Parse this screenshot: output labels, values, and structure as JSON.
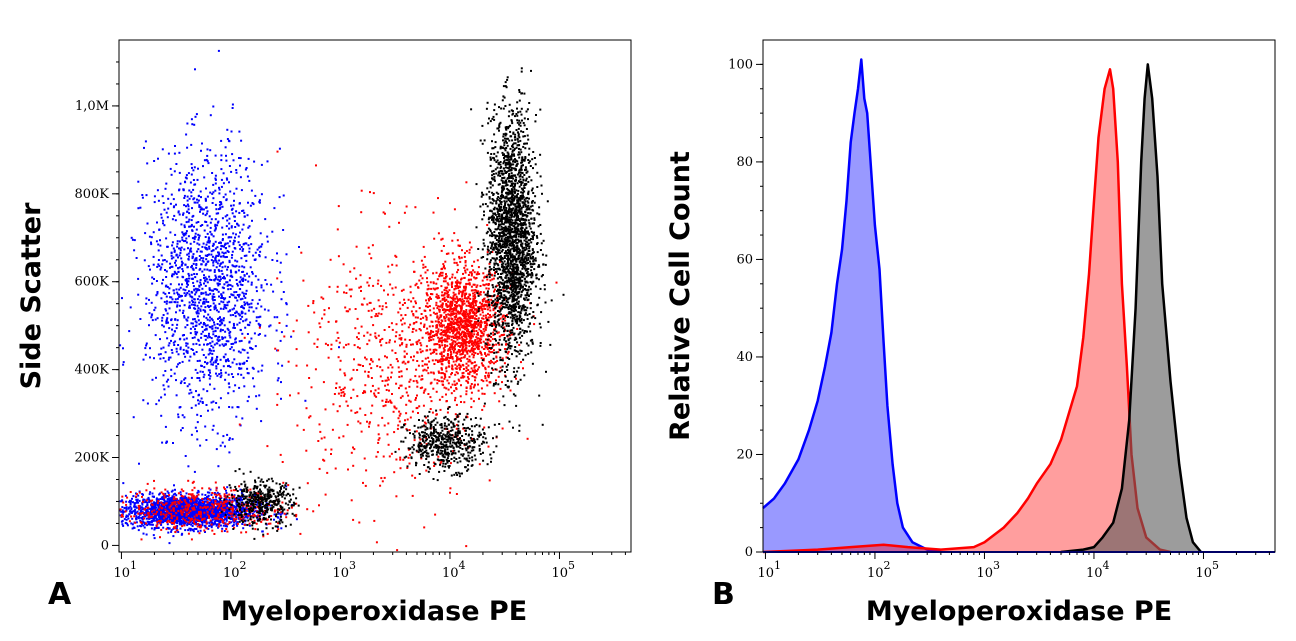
{
  "chart_data": [
    {
      "type": "scatter",
      "panel_label": "A",
      "xlabel": "Myeloperoxidase PE",
      "ylabel": "Side Scatter",
      "xscale": "log",
      "xlim": [
        9.5,
        450000
      ],
      "ylim": [
        -15000,
        1150000
      ],
      "x_ticks": [
        {
          "base": "10",
          "exp": "1",
          "value": 10
        },
        {
          "base": "10",
          "exp": "2",
          "value": 100
        },
        {
          "base": "10",
          "exp": "3",
          "value": 1000
        },
        {
          "base": "10",
          "exp": "4",
          "value": 10000
        },
        {
          "base": "10",
          "exp": "5",
          "value": 100000
        }
      ],
      "y_ticks": [
        {
          "label": "0",
          "value": 0
        },
        {
          "label": "200K",
          "value": 200000
        },
        {
          "label": "400K",
          "value": 400000
        },
        {
          "label": "600K",
          "value": 600000
        },
        {
          "label": "800K",
          "value": 800000
        },
        {
          "label": "1,0M",
          "value": 1000000
        }
      ],
      "grid": false,
      "series": [
        {
          "color": "#0000ff",
          "clusters": [
            {
              "x_center": 40,
              "x_log_sd": 0.3,
              "y_center": 80000,
              "y_sd": 18000,
              "n": 2200
            },
            {
              "x_center": 60,
              "x_log_sd": 0.28,
              "y_center": 590000,
              "y_sd": 150000,
              "n": 1600
            }
          ]
        },
        {
          "color": "#ff0000",
          "clusters": [
            {
              "x_center": 13000,
              "x_log_sd": 0.18,
              "y_center": 500000,
              "y_sd": 70000,
              "n": 1400
            },
            {
              "x_center": 3000,
              "x_log_sd": 0.45,
              "y_center": 420000,
              "y_sd": 150000,
              "n": 700
            },
            {
              "x_center": 50,
              "x_log_sd": 0.4,
              "y_center": 85000,
              "y_sd": 25000,
              "n": 500
            }
          ]
        },
        {
          "color": "#000000",
          "clusters": [
            {
              "x_center": 36000,
              "x_log_sd": 0.11,
              "y_center": 700000,
              "y_sd": 140000,
              "n": 2200
            },
            {
              "x_center": 9000,
              "x_log_sd": 0.18,
              "y_center": 235000,
              "y_sd": 30000,
              "n": 500
            },
            {
              "x_center": 180,
              "x_log_sd": 0.15,
              "y_center": 100000,
              "y_sd": 25000,
              "n": 400
            }
          ]
        }
      ]
    },
    {
      "type": "area",
      "panel_label": "B",
      "xlabel": "Myeloperoxidase PE",
      "ylabel": "Relative Cell Count",
      "xscale": "log",
      "xlim": [
        9.5,
        450000
      ],
      "ylim": [
        0,
        105
      ],
      "x_ticks": [
        {
          "base": "10",
          "exp": "1",
          "value": 10
        },
        {
          "base": "10",
          "exp": "2",
          "value": 100
        },
        {
          "base": "10",
          "exp": "3",
          "value": 1000
        },
        {
          "base": "10",
          "exp": "4",
          "value": 10000
        },
        {
          "base": "10",
          "exp": "5",
          "value": 100000
        }
      ],
      "y_ticks": [
        {
          "label": "0",
          "value": 0
        },
        {
          "label": "20",
          "value": 20
        },
        {
          "label": "40",
          "value": 40
        },
        {
          "label": "60",
          "value": 60
        },
        {
          "label": "80",
          "value": 80
        },
        {
          "label": "100",
          "value": 100
        }
      ],
      "grid": false,
      "series": [
        {
          "color": "#0000ff",
          "fill": "#9999ff",
          "points": [
            [
              9.5,
              9
            ],
            [
              12,
              11
            ],
            [
              15,
              14
            ],
            [
              20,
              19
            ],
            [
              25,
              25
            ],
            [
              30,
              31
            ],
            [
              35,
              38
            ],
            [
              40,
              45
            ],
            [
              45,
              55
            ],
            [
              50,
              62
            ],
            [
              55,
              72
            ],
            [
              60,
              84
            ],
            [
              65,
              90
            ],
            [
              70,
              95
            ],
            [
              75,
              101
            ],
            [
              80,
              93
            ],
            [
              85,
              90
            ],
            [
              90,
              82
            ],
            [
              100,
              67
            ],
            [
              110,
              58
            ],
            [
              120,
              43
            ],
            [
              130,
              30
            ],
            [
              145,
              18
            ],
            [
              160,
              10
            ],
            [
              180,
              5
            ],
            [
              220,
              2
            ],
            [
              300,
              0.5
            ],
            [
              400,
              0
            ]
          ]
        },
        {
          "color": "#ff0000",
          "fill": "rgba(255,0,0,0.38)",
          "points": [
            [
              9.5,
              0
            ],
            [
              30,
              0.5
            ],
            [
              60,
              1
            ],
            [
              120,
              1.5
            ],
            [
              200,
              1
            ],
            [
              400,
              0.5
            ],
            [
              800,
              1
            ],
            [
              1000,
              2
            ],
            [
              1500,
              5
            ],
            [
              2000,
              8
            ],
            [
              2500,
              11
            ],
            [
              3000,
              14
            ],
            [
              4000,
              18
            ],
            [
              5000,
              23
            ],
            [
              6000,
              29
            ],
            [
              7000,
              34
            ],
            [
              8000,
              44
            ],
            [
              9000,
              57
            ],
            [
              10000,
              72
            ],
            [
              11000,
              85
            ],
            [
              12500,
              95
            ],
            [
              14000,
              99
            ],
            [
              15000,
              95
            ],
            [
              16500,
              80
            ],
            [
              18000,
              55
            ],
            [
              20000,
              38
            ],
            [
              22000,
              20
            ],
            [
              25000,
              9
            ],
            [
              30000,
              3
            ],
            [
              40000,
              0.5
            ],
            [
              50000,
              0
            ]
          ]
        },
        {
          "color": "#000000",
          "fill": "rgba(90,90,90,0.6)",
          "points": [
            [
              5000,
              0
            ],
            [
              8000,
              0.5
            ],
            [
              10000,
              1
            ],
            [
              12000,
              3
            ],
            [
              15000,
              6
            ],
            [
              18000,
              13
            ],
            [
              21000,
              27
            ],
            [
              24000,
              50
            ],
            [
              27000,
              80
            ],
            [
              29000,
              93
            ],
            [
              31000,
              100
            ],
            [
              34000,
              93
            ],
            [
              38000,
              77
            ],
            [
              42000,
              55
            ],
            [
              50000,
              35
            ],
            [
              60000,
              18
            ],
            [
              70000,
              7
            ],
            [
              80000,
              2
            ],
            [
              95000,
              0
            ]
          ]
        }
      ]
    }
  ]
}
